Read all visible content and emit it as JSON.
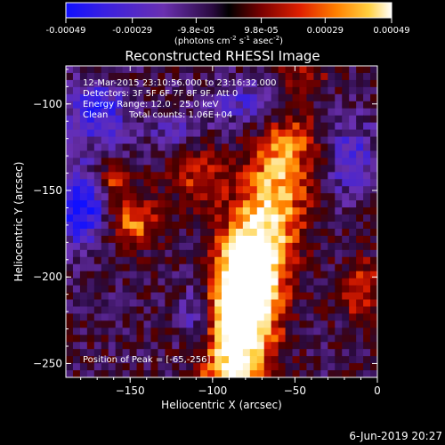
{
  "colorbar": {
    "ticks": [
      "-0.00049",
      "-0.00029",
      "-9.8e-05",
      "9.8e-05",
      "0.00029",
      "0.00049"
    ],
    "tick_values": [
      -0.00049,
      -0.00029,
      -9.8e-05,
      9.8e-05,
      0.00029,
      0.00049
    ],
    "range": [
      -0.00049,
      0.00049
    ],
    "units_text": "(photons cm",
    "units_exp1": "-2",
    "units_mid": " s",
    "units_exp2": "-1",
    "units_end": " asec",
    "units_exp3": "-2",
    "units_close": ")"
  },
  "chart_data": {
    "type": "heatmap",
    "title": "Reconstructed RHESSI Image",
    "xlabel": "Heliocentric X (arcsec)",
    "ylabel": "Heliocentric Y (arcsec)",
    "xlim": [
      -189,
      0
    ],
    "ylim": [
      -258,
      -78
    ],
    "xticks": [
      -150,
      -100,
      -50,
      0
    ],
    "yticks": [
      -100,
      -150,
      -200,
      -250
    ],
    "annotations": [
      "12-Mar-2015 23:10:56.000 to 23:16:32.000",
      "Detectors: 3F 5F 6F 7F 8F 9F, Att 0",
      "Energy Range: 12.0 - 25.0 keV",
      "Clean",
      "Total counts: 1.06E+04",
      "Position of Peak = [-65,-256]"
    ],
    "peak": {
      "x": -65,
      "y": -256
    },
    "colormap": "blue-purple-black-red-orange-yellow-white"
  },
  "footer": {
    "date": "6-Jun-2019 20:27"
  }
}
